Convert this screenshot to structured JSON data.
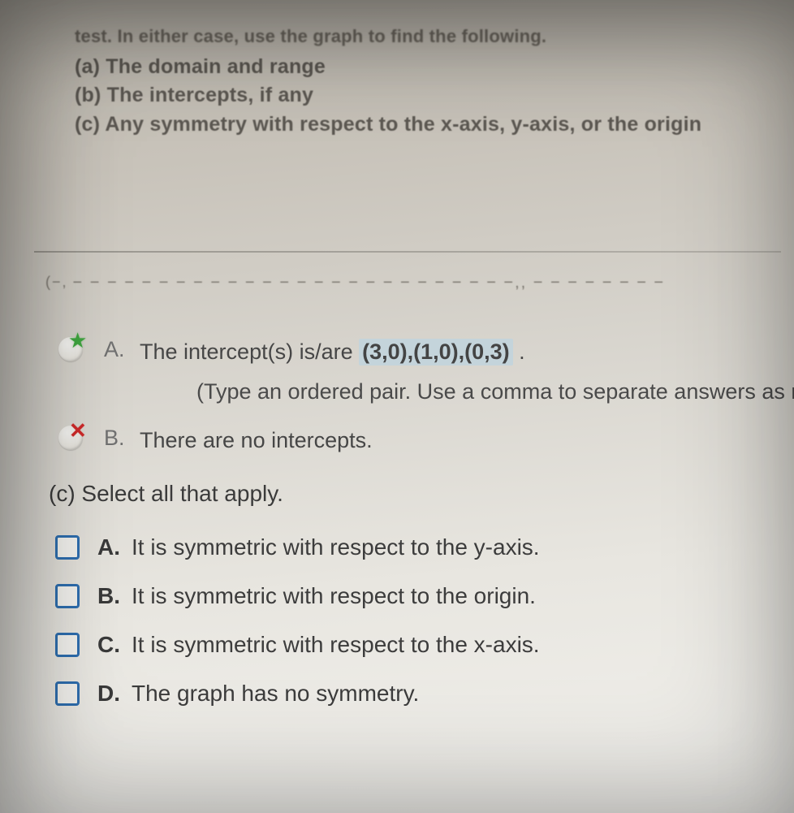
{
  "colors": {
    "background_gradient_top": "#bfbab0",
    "background_gradient_bottom": "#f2f1ed",
    "text_primary": "#3a3a3a",
    "text_faded": "#5c5852",
    "highlight_bg": "#c4d4db",
    "checkbox_border": "#2f6fb0",
    "correct_mark": "#3fa63f",
    "incorrect_mark": "#cf2a2a",
    "option_letter": "#717171"
  },
  "typography": {
    "body_fontsize_pt": 20,
    "instruction_fontsize_pt": 19,
    "font_family": "Arial"
  },
  "top": {
    "truncated_line": "test. In either case, use the graph to find the following.",
    "a": "(a) The domain and range",
    "b": "(b) The intercepts, if any",
    "c": "(c) Any symmetry with respect to the x-axis, y-axis, or the origin"
  },
  "dash_row": {
    "left_glyph": "(−,",
    "dashes": "− − − − − − − − − − − − − − − − − − − − − − − − − −,, − − − − − − − −"
  },
  "optionA": {
    "letter": "A.",
    "lead": "The intercept(s) is/are ",
    "answer": "(3,0),(1,0),(0,3)",
    "tail": " .",
    "note": "(Type an ordered pair. Use a comma to separate answers as n",
    "state": "correct"
  },
  "optionB": {
    "letter": "B.",
    "text": "There are no intercepts.",
    "state": "incorrect"
  },
  "partC": {
    "prompt": "(c) Select all that apply.",
    "choices": [
      {
        "letter": "A.",
        "text": "It is symmetric with respect to the y-axis.",
        "checked": false
      },
      {
        "letter": "B.",
        "text": "It is symmetric with respect to the origin.",
        "checked": false
      },
      {
        "letter": "C.",
        "text": "It is symmetric with respect to the x-axis.",
        "checked": false
      },
      {
        "letter": "D.",
        "text": "The graph has no symmetry.",
        "checked": false
      }
    ]
  }
}
